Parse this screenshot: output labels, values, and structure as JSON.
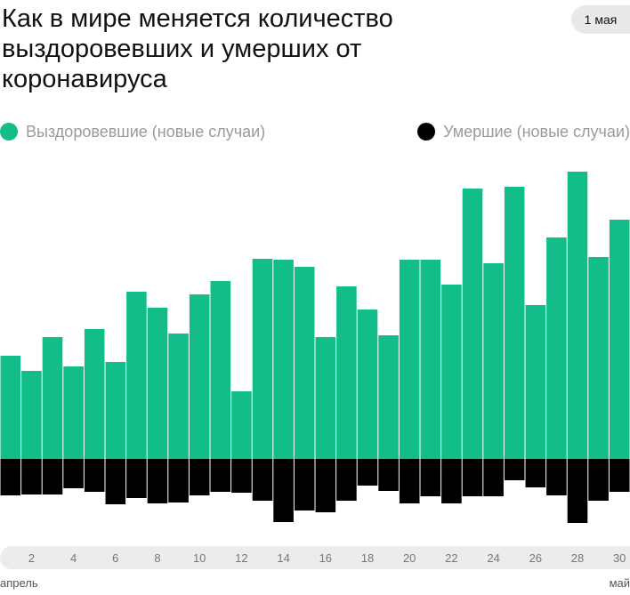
{
  "title": "Как в мире меняется количество выздоровевших и умерших от коронавируса",
  "date_badge": "1 мая",
  "legend": {
    "recovered": {
      "label": "Выздоровевшие (новые случаи)",
      "color": "#13bd8a"
    },
    "deceased": {
      "label": "Умершие (новые случаи)",
      "color": "#000000"
    }
  },
  "axis": {
    "month_start": "апрель",
    "month_end": "май",
    "tick_labels": [
      "2",
      "4",
      "6",
      "8",
      "10",
      "12",
      "14",
      "16",
      "18",
      "20",
      "22",
      "24",
      "26",
      "28",
      "30"
    ]
  },
  "chart_data": {
    "type": "bar",
    "categories": [
      "1 апр",
      "2 апр",
      "3 апр",
      "4 апр",
      "5 апр",
      "6 апр",
      "7 апр",
      "8 апр",
      "9 апр",
      "10 апр",
      "11 апр",
      "12 апр",
      "13 апр",
      "14 апр",
      "15 апр",
      "16 апр",
      "17 апр",
      "18 апр",
      "19 апр",
      "20 апр",
      "21 апр",
      "22 апр",
      "23 апр",
      "24 апр",
      "25 апр",
      "26 апр",
      "27 апр",
      "28 апр",
      "29 апр",
      "30 апр"
    ],
    "series": [
      {
        "name": "Выздоровевшие (новые случаи)",
        "color": "#13bd8a",
        "values": [
          116,
          99,
          137,
          104,
          146,
          109,
          188,
          170,
          141,
          185,
          200,
          76,
          225,
          224,
          216,
          137,
          194,
          168,
          139,
          224,
          224,
          196,
          304,
          220,
          306,
          173,
          249,
          323,
          227,
          269
        ]
      },
      {
        "name": "Умершие (новые случаи)",
        "color": "#000000",
        "values": [
          -41,
          -40,
          -40,
          -33,
          -37,
          -51,
          -44,
          -50,
          -49,
          -41,
          -37,
          -38,
          -47,
          -71,
          -58,
          -60,
          -47,
          -30,
          -36,
          -50,
          -42,
          -50,
          -42,
          -42,
          -24,
          -32,
          -41,
          -72,
          -47,
          -37
        ]
      }
    ],
    "ylim": [
      -100,
      350
    ]
  }
}
